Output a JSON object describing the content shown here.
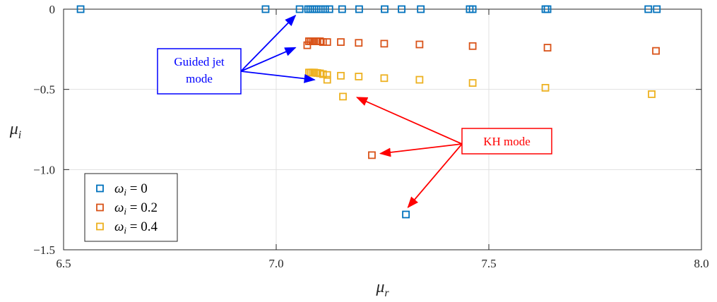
{
  "chart_data": {
    "type": "scatter",
    "xlabel": {
      "main": "μ",
      "sub": "r"
    },
    "ylabel": {
      "main": "μ",
      "sub": "i"
    },
    "xlim": [
      6.5,
      8.0
    ],
    "ylim": [
      -1.5,
      0
    ],
    "xticks": [
      "6.5",
      "7.0",
      "7.5",
      "8.0"
    ],
    "yticks": [
      "0",
      "−0.5",
      "−1.0",
      "−1.5"
    ],
    "grid": true,
    "marker": "square-open",
    "legend_position": "bottom-left",
    "series": [
      {
        "name": "ω_i = 0",
        "label_main": "ω",
        "label_sub": "i",
        "label_rest": " = 0",
        "color": "#0072BD",
        "points": [
          [
            6.54,
            0
          ],
          [
            6.975,
            0
          ],
          [
            7.055,
            0
          ],
          [
            7.075,
            0
          ],
          [
            7.08,
            0
          ],
          [
            7.085,
            0
          ],
          [
            7.09,
            0
          ],
          [
            7.095,
            0
          ],
          [
            7.105,
            0
          ],
          [
            7.115,
            0
          ],
          [
            7.125,
            0
          ],
          [
            7.155,
            0
          ],
          [
            7.195,
            0
          ],
          [
            7.255,
            0
          ],
          [
            7.295,
            0
          ],
          [
            7.34,
            0
          ],
          [
            7.455,
            0
          ],
          [
            7.462,
            0
          ],
          [
            7.633,
            0
          ],
          [
            7.638,
            0
          ],
          [
            7.875,
            0
          ],
          [
            7.895,
            0
          ],
          [
            7.305,
            -1.28
          ]
        ]
      },
      {
        "name": "ω_i = 0.2",
        "label_main": "ω",
        "label_sub": "i",
        "label_rest": " = 0.2",
        "color": "#D95319",
        "points": [
          [
            7.073,
            -0.225
          ],
          [
            7.077,
            -0.2
          ],
          [
            7.081,
            -0.2
          ],
          [
            7.085,
            -0.2
          ],
          [
            7.089,
            -0.2
          ],
          [
            7.093,
            -0.2
          ],
          [
            7.097,
            -0.2
          ],
          [
            7.103,
            -0.2
          ],
          [
            7.11,
            -0.205
          ],
          [
            7.12,
            -0.205
          ],
          [
            7.152,
            -0.205
          ],
          [
            7.194,
            -0.21
          ],
          [
            7.254,
            -0.215
          ],
          [
            7.337,
            -0.22
          ],
          [
            7.462,
            -0.23
          ],
          [
            7.638,
            -0.24
          ],
          [
            7.893,
            -0.26
          ],
          [
            7.225,
            -0.91
          ]
        ]
      },
      {
        "name": "ω_i = 0.4",
        "label_main": "ω",
        "label_sub": "i",
        "label_rest": " = 0.4",
        "color": "#EDB120",
        "points": [
          [
            7.077,
            -0.395
          ],
          [
            7.081,
            -0.395
          ],
          [
            7.085,
            -0.395
          ],
          [
            7.089,
            -0.395
          ],
          [
            7.093,
            -0.397
          ],
          [
            7.097,
            -0.398
          ],
          [
            7.103,
            -0.4
          ],
          [
            7.11,
            -0.405
          ],
          [
            7.12,
            -0.41
          ],
          [
            7.152,
            -0.415
          ],
          [
            7.194,
            -0.42
          ],
          [
            7.254,
            -0.43
          ],
          [
            7.337,
            -0.44
          ],
          [
            7.462,
            -0.46
          ],
          [
            7.633,
            -0.49
          ],
          [
            7.883,
            -0.53
          ],
          [
            7.12,
            -0.44
          ],
          [
            7.157,
            -0.545
          ]
        ]
      }
    ],
    "annotations": [
      {
        "text_lines": [
          "Guided jet",
          "mode"
        ],
        "color": "#0000FF",
        "arrow_targets": [
          [
            7.055,
            -0.04
          ],
          [
            7.055,
            -0.24
          ],
          [
            7.1,
            -0.44
          ]
        ]
      },
      {
        "text_lines": [
          "KH mode"
        ],
        "color": "#FF0000",
        "arrow_targets": [
          [
            7.19,
            -0.55
          ],
          [
            7.245,
            -0.9
          ],
          [
            7.31,
            -1.235
          ]
        ]
      }
    ]
  }
}
